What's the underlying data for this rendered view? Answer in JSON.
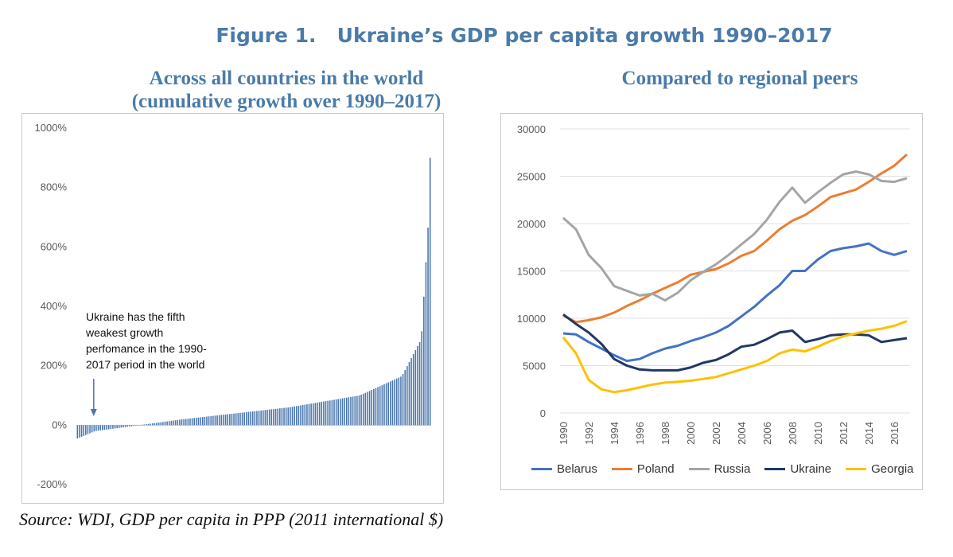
{
  "figure_title": "Figure 1.   Ukraine’s GDP per capita growth 1990–2017",
  "source": "Source: WDI, GDP per capita in PPP (2011 international $)",
  "colors": {
    "title": "#4a7ba9",
    "bars": "#4a76ad",
    "Belarus": "#4472c4",
    "Poland": "#ed7d31",
    "Russia": "#a5a5a5",
    "Ukraine": "#203864",
    "Georgia": "#ffc000"
  },
  "chart_data": [
    {
      "type": "bar",
      "title": "Across all countries in the world (cumulative growth over 1990–2017)",
      "title_lines": [
        "Across all countries in the world",
        "(cumulative growth over 1990–2017)"
      ],
      "ylabel": "",
      "xlabel": "",
      "ylim": [
        -200,
        1000
      ],
      "yticks": [
        "1000%",
        "800%",
        "600%",
        "400%",
        "200%",
        "0%",
        "-200%"
      ],
      "ytick_values": [
        1000,
        800,
        600,
        400,
        200,
        0,
        -200
      ],
      "count": 170,
      "value_shape": "sorted ascending; approx. -45% at lowest to 900% at highest",
      "key_values": {
        "min": -45,
        "p05": -20,
        "p30": 20,
        "p60": 60,
        "p80": 100,
        "p92": 165,
        "second_highest": 665,
        "highest": 900
      },
      "annotation": {
        "lines": [
          "Ukraine has the fifth",
          "weakest growth",
          "perfomance in the 1990-",
          "2017 period in the world"
        ],
        "points_to_rank": 5
      }
    },
    {
      "type": "line",
      "title": "Compared to regional peers",
      "x": [
        1990,
        1991,
        1992,
        1993,
        1994,
        1995,
        1996,
        1997,
        1998,
        1999,
        2000,
        2001,
        2002,
        2003,
        2004,
        2005,
        2006,
        2007,
        2008,
        2009,
        2010,
        2011,
        2012,
        2013,
        2014,
        2015,
        2016,
        2017
      ],
      "xticks": [
        "1990",
        "1992",
        "1994",
        "1996",
        "1998",
        "2000",
        "2002",
        "2004",
        "2006",
        "2008",
        "2010",
        "2012",
        "2014",
        "2016"
      ],
      "ylim": [
        0,
        30000
      ],
      "yticks": [
        "30000",
        "25000",
        "20000",
        "15000",
        "10000",
        "5000",
        "0"
      ],
      "ytick_values": [
        30000,
        25000,
        20000,
        15000,
        10000,
        5000,
        0
      ],
      "legend_position": "bottom",
      "series": [
        {
          "name": "Belarus",
          "values": [
            8400,
            8300,
            7500,
            6800,
            6100,
            5500,
            5700,
            6300,
            6800,
            7100,
            7600,
            8000,
            8500,
            9200,
            10200,
            11200,
            12400,
            13500,
            15000,
            15000,
            16200,
            17100,
            17400,
            17600,
            17900,
            17100,
            16700,
            17100
          ]
        },
        {
          "name": "Poland",
          "values": [
            10300,
            9600,
            9800,
            10100,
            10600,
            11300,
            11900,
            12600,
            13200,
            13800,
            14600,
            14900,
            15200,
            15800,
            16600,
            17100,
            18200,
            19400,
            20300,
            20900,
            21800,
            22800,
            23200,
            23600,
            24400,
            25300,
            26100,
            27300
          ]
        },
        {
          "name": "Russia",
          "values": [
            20600,
            19400,
            16700,
            15300,
            13400,
            12900,
            12400,
            12600,
            11900,
            12700,
            14000,
            14900,
            15700,
            16700,
            17800,
            18900,
            20400,
            22300,
            23800,
            22200,
            23300,
            24300,
            25200,
            25500,
            25200,
            24500,
            24400,
            24800
          ]
        },
        {
          "name": "Ukraine",
          "values": [
            10400,
            9400,
            8500,
            7300,
            5700,
            5000,
            4600,
            4500,
            4500,
            4500,
            4800,
            5300,
            5600,
            6200,
            7000,
            7200,
            7800,
            8500,
            8700,
            7500,
            7800,
            8200,
            8300,
            8300,
            8200,
            7500,
            7700,
            7900
          ]
        },
        {
          "name": "Georgia",
          "values": [
            8000,
            6300,
            3500,
            2500,
            2200,
            2400,
            2700,
            3000,
            3200,
            3300,
            3400,
            3600,
            3800,
            4200,
            4600,
            5000,
            5500,
            6300,
            6700,
            6500,
            7000,
            7600,
            8100,
            8400,
            8700,
            8900,
            9200,
            9700
          ]
        }
      ]
    }
  ]
}
